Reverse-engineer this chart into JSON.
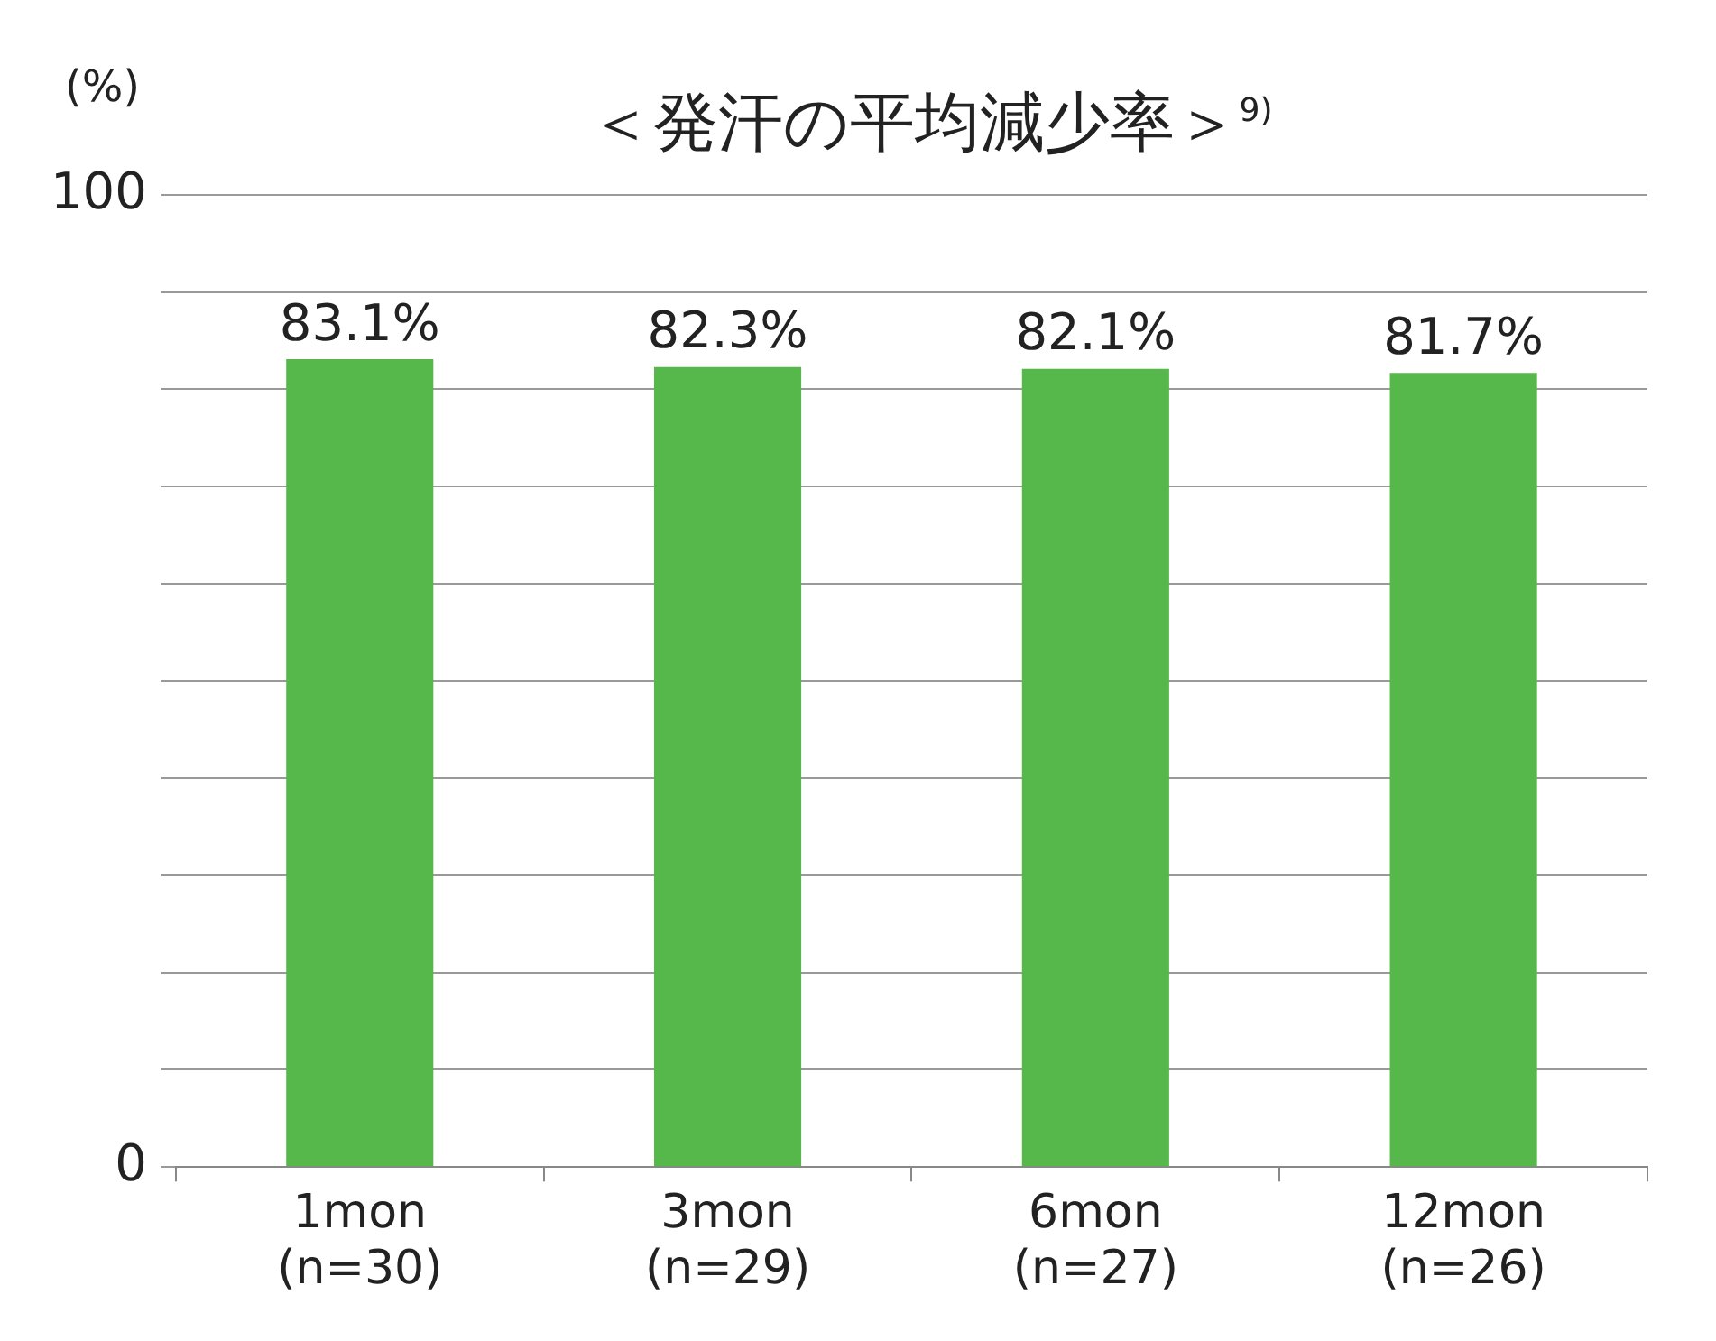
{
  "chart_data": {
    "type": "bar",
    "title": "＜発汗の平均減少率＞$^{9)}$",
    "ylabel": "(%)",
    "categories": [
      "1mon\n(n=30)",
      "3mon\n(n=29)",
      "6mon\n(n=27)",
      "12mon\n(n=26)"
    ],
    "values": [
      83.1,
      82.3,
      82.1,
      81.7
    ],
    "color": "#56b84a",
    "value_labels": [
      "83.1%",
      "82.3%",
      "82.1%",
      "81.7%"
    ],
    "ylim": [
      0,
      100
    ],
    "yticks": [
      0,
      {
        "value": 10,
        "label": null
      },
      {
        "value": 20,
        "label": null
      },
      {
        "value": 30,
        "label": null
      },
      {
        "value": 40,
        "label": null
      },
      {
        "value": 50,
        "label": null
      },
      {
        "value": 60,
        "label": null
      },
      {
        "value": 70,
        "label": null
      },
      {
        "value": 80,
        "label": null
      },
      {
        "value": 90,
        "label": null
      },
      100
    ],
    "grid": "y",
    "legend": false
  }
}
